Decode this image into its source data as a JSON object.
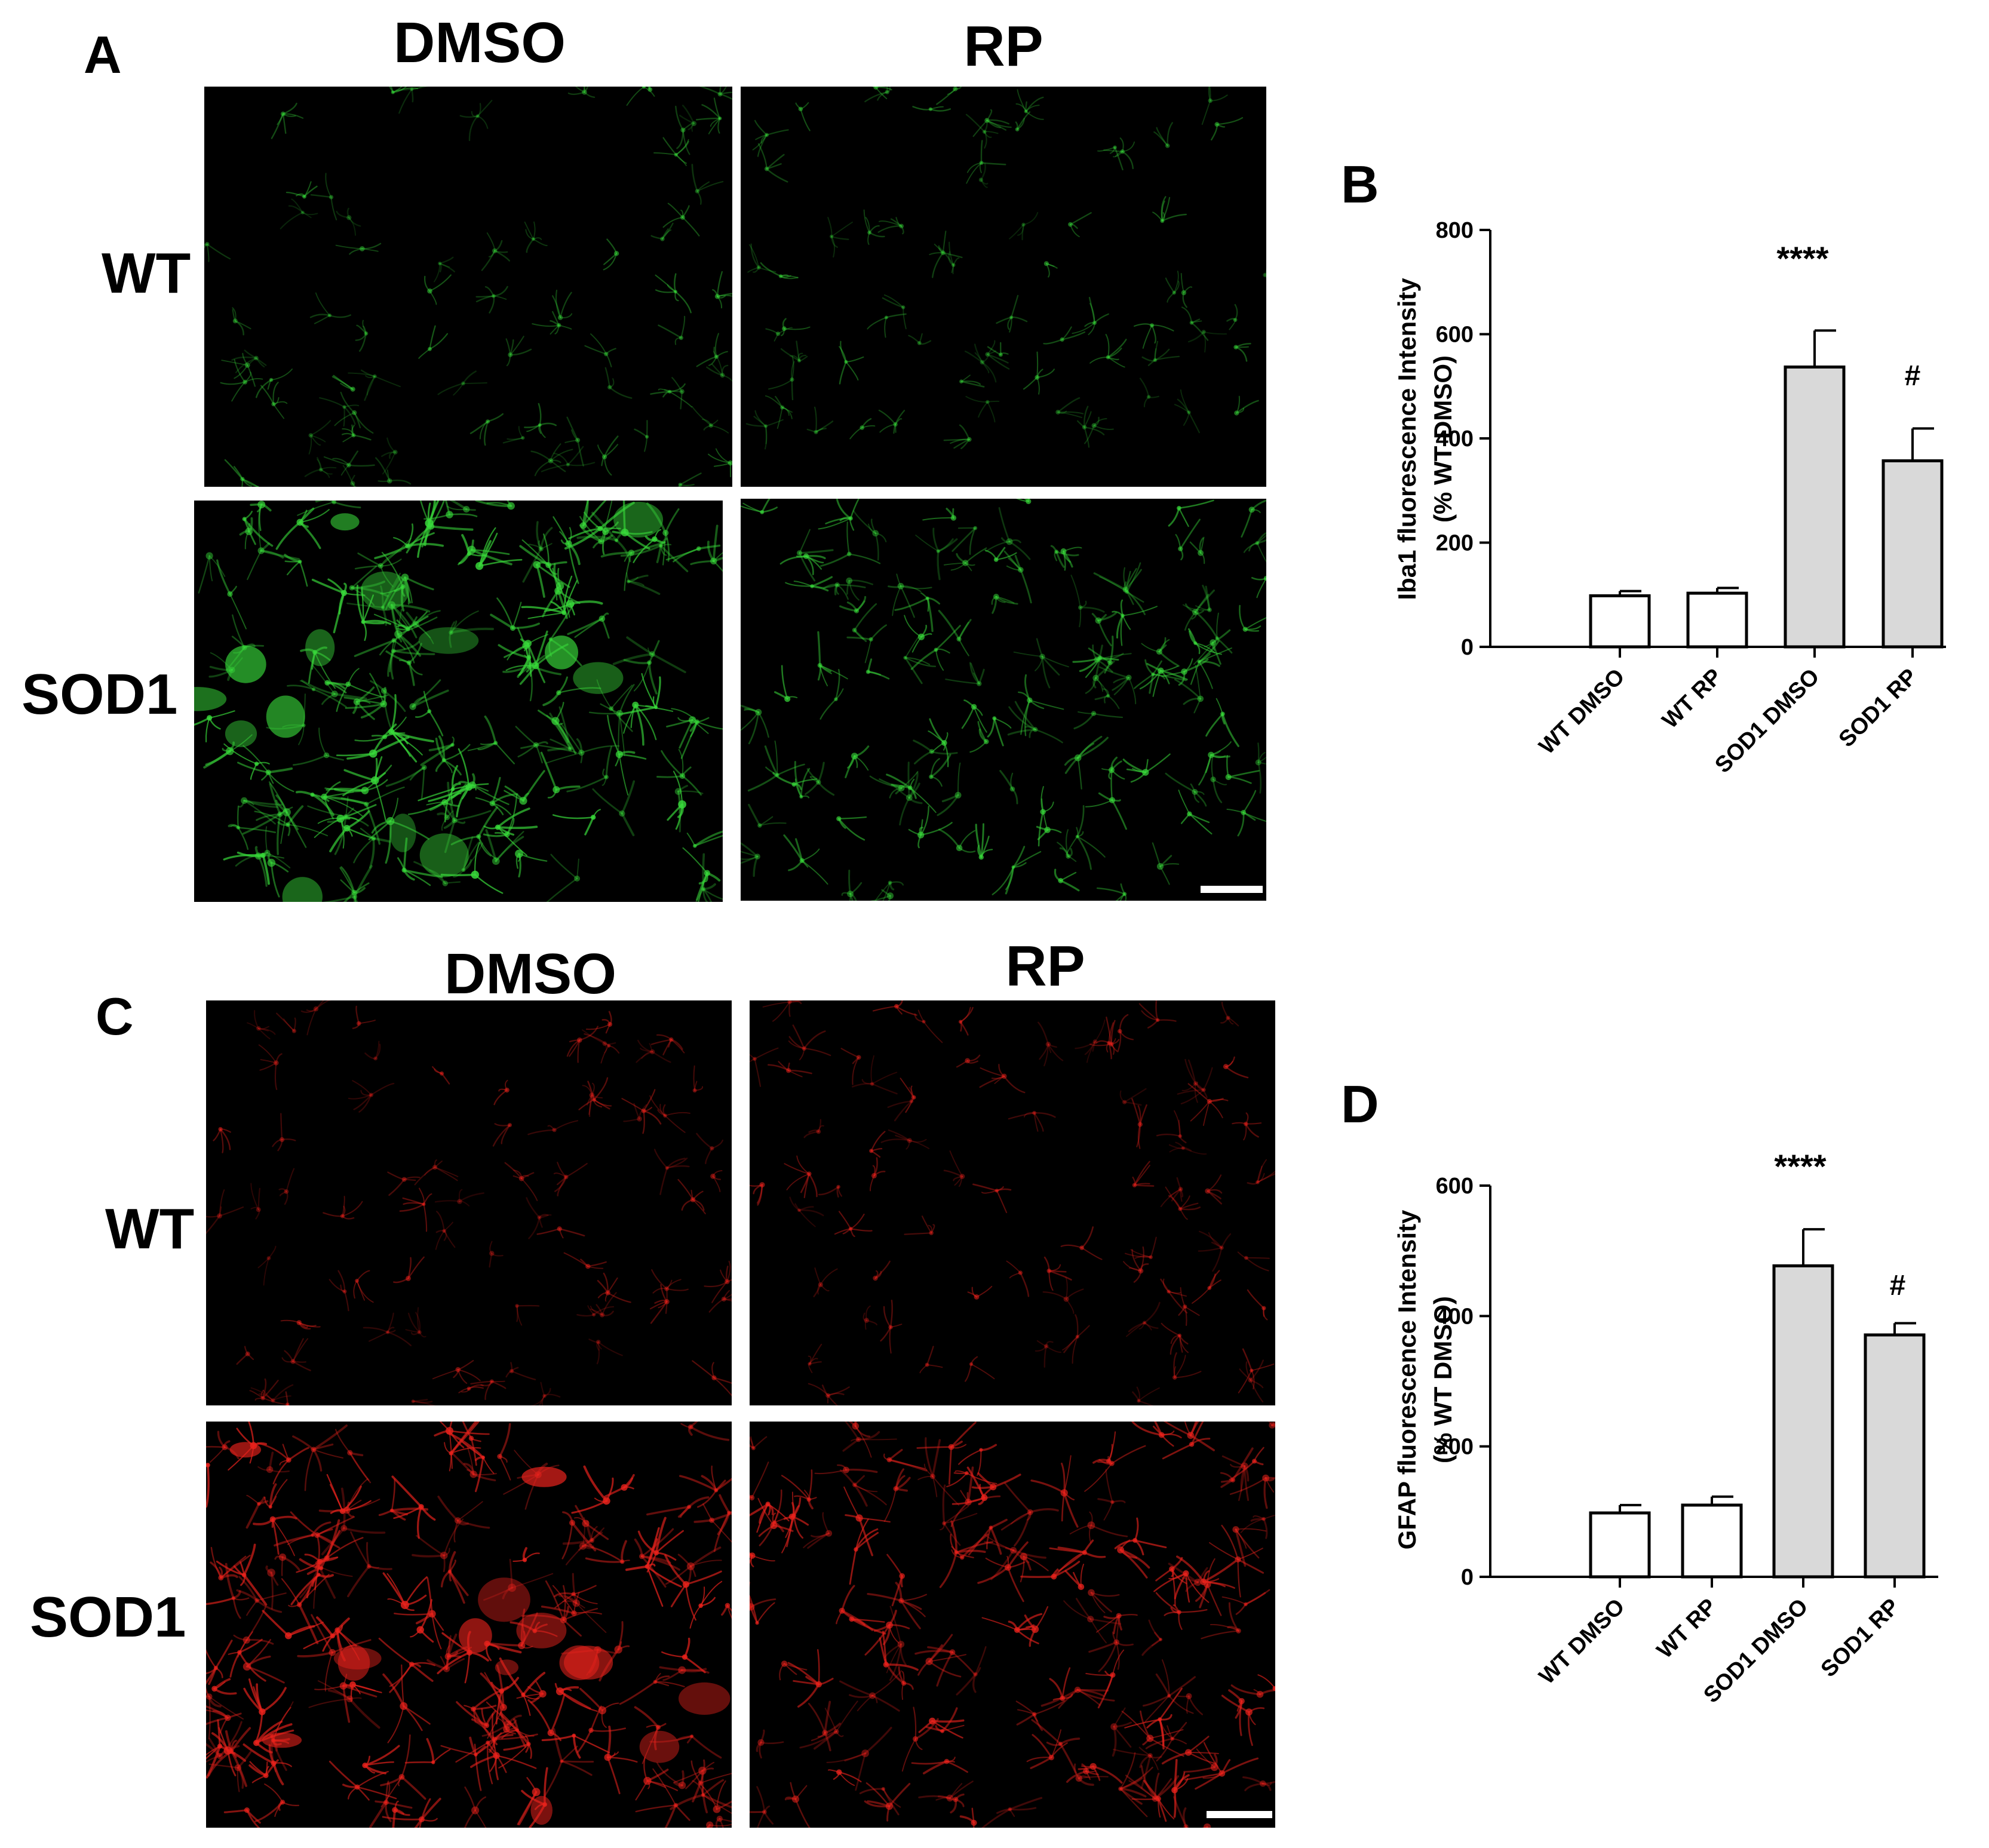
{
  "panels": {
    "A": {
      "letter": "A",
      "columns": [
        "DMSO",
        "RP"
      ],
      "rows": [
        "WT",
        "SOD1"
      ],
      "stain_color": "#38d83a"
    },
    "B": {
      "letter": "B"
    },
    "C": {
      "letter": "C",
      "columns": [
        "DMSO",
        "RP"
      ],
      "rows": [
        "WT",
        "SOD1"
      ],
      "stain_color": "#e8221c"
    },
    "D": {
      "letter": "D"
    }
  },
  "chart_data": [
    {
      "type": "bar",
      "panel": "B",
      "title": "",
      "xlabel": "",
      "ylabel": "Iba1 fluorescence Intensity",
      "ylabel2": "(%  WT DMSO)",
      "categories": [
        "WT DMSO",
        "WT RP",
        "SOD1 DMSO",
        "SOD1 RP"
      ],
      "values": [
        98,
        103,
        537,
        357
      ],
      "errors": [
        9,
        10,
        70,
        62
      ],
      "bar_colors": [
        "#ffffff",
        "#ffffff",
        "#d9d9d9",
        "#d9d9d9"
      ],
      "annotations": [
        "",
        "",
        "****",
        "#"
      ],
      "ylim": [
        0,
        800
      ],
      "yticks": [
        "0",
        "200",
        "400",
        "600",
        "800"
      ],
      "grid": false,
      "legend": "none"
    },
    {
      "type": "bar",
      "panel": "D",
      "title": "",
      "xlabel": "",
      "ylabel": "GFAP fluorescence Intensity",
      "ylabel2": "(% WT DMSO)",
      "categories": [
        "WT DMSO",
        "WT RP",
        "SOD1 DMSO",
        "SOD1 RP"
      ],
      "values": [
        98,
        110,
        477,
        371
      ],
      "errors": [
        12,
        13,
        56,
        18
      ],
      "bar_colors": [
        "#ffffff",
        "#ffffff",
        "#d9d9d9",
        "#d9d9d9"
      ],
      "annotations": [
        "",
        "",
        "****",
        "#"
      ],
      "ylim": [
        0,
        600
      ],
      "yticks": [
        "0",
        "200",
        "400",
        "600"
      ],
      "grid": false,
      "legend": "none"
    }
  ]
}
